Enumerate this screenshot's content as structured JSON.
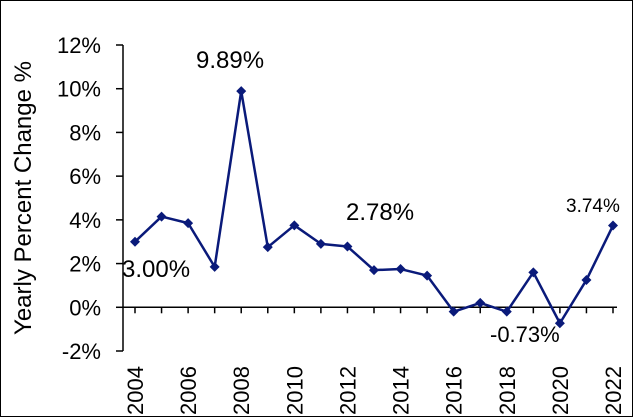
{
  "chart_data": {
    "type": "line",
    "ylabel": "Yearly Percent Change %",
    "xlabel": "",
    "title": "",
    "ylim": [
      -2,
      12
    ],
    "y_ticks": [
      "-2%",
      "0%",
      "2%",
      "4%",
      "6%",
      "8%",
      "10%",
      "12%"
    ],
    "x_ticks": [
      "2004",
      "2006",
      "2008",
      "2010",
      "2012",
      "2014",
      "2016",
      "2018",
      "2020",
      "2022"
    ],
    "grid": false,
    "legend": "none",
    "series_color": "#0a1a7a",
    "series": [
      {
        "x": [
          2004,
          2005,
          2006,
          2007,
          2008,
          2009,
          2010,
          2011,
          2012,
          2013,
          2014,
          2015,
          2016,
          2017,
          2018,
          2019,
          2020,
          2021,
          2022
        ],
        "values": [
          3.0,
          4.15,
          3.85,
          1.85,
          9.89,
          2.75,
          3.75,
          2.9,
          2.78,
          1.7,
          1.75,
          1.45,
          -0.2,
          0.2,
          -0.2,
          1.6,
          -0.73,
          1.25,
          3.74
        ]
      }
    ],
    "annotations": [
      {
        "text": "9.89%"
      },
      {
        "text": "3.00%"
      },
      {
        "text": "2.78%"
      },
      {
        "text": "-0.73%"
      },
      {
        "text": "3.74%"
      }
    ]
  }
}
